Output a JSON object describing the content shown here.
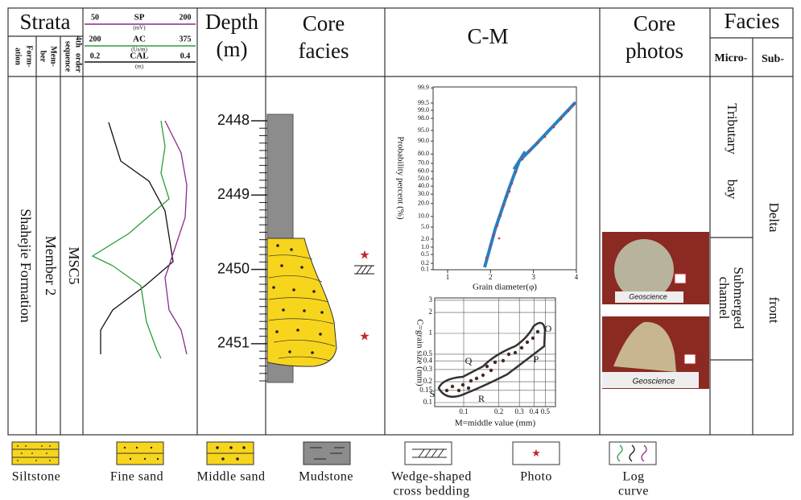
{
  "columns": {
    "strata": "Strata",
    "formation_lines": [
      "Form-",
      "ation"
    ],
    "member_lines": [
      "Mem-",
      "ber"
    ],
    "sequence_lines": [
      "4th",
      "order",
      "sequence"
    ],
    "depth_lines": [
      "Depth",
      "(m)"
    ],
    "core_facies_lines": [
      "Core",
      "facies"
    ],
    "cm": "C-M",
    "core_photos_lines": [
      "Core",
      "photos"
    ],
    "facies": "Facies",
    "micro": "Micro-",
    "sub": "Sub-"
  },
  "logs": [
    {
      "name": "SP",
      "unit": "(mV)",
      "min": "50",
      "max": "200"
    },
    {
      "name": "AC",
      "unit": "(Us/m)",
      "min": "200",
      "max": "375"
    },
    {
      "name": "CAL",
      "unit": "(m)",
      "min": "0.2",
      "max": "0.4"
    }
  ],
  "strata": {
    "formation": "Shahejie  Formation",
    "member": "Member  2",
    "sequence": "MSC5"
  },
  "depths": [
    "2448",
    "2449",
    "2450",
    "2451"
  ],
  "cm_probability": {
    "y_label": "Probability percent (%)",
    "x_label": "Grain diameter(φ)",
    "yticks": [
      "99.9",
      "99.5",
      "99.0",
      "98.0",
      "95.0",
      "90.0",
      "80.0",
      "70.0",
      "60.0",
      "50.0",
      "40.0",
      "30.0",
      "20.0",
      "10.0",
      "5.0",
      "2.0",
      "1.0",
      "0.5",
      "0.2",
      "0.1"
    ],
    "xticks": [
      "1",
      "2",
      "3",
      "4"
    ]
  },
  "cm_pattern": {
    "y_label": "C=grain size (mm)",
    "x_label": "M=middle value (mm)",
    "yticks": [
      "3",
      "2",
      "1",
      "0.5",
      "0.4",
      "0.3",
      "0.2",
      "0.15",
      "0.1"
    ],
    "xticks": [
      "0.1",
      "0.2",
      "0.3",
      "0.4",
      "0.5"
    ],
    "segments": [
      "S",
      "R",
      "Q",
      "P",
      "O"
    ]
  },
  "photos": [
    "Geoscience",
    "Geoscience"
  ],
  "facies": {
    "micro": [
      [
        "Tributary",
        "bay"
      ],
      [
        "Submerged",
        "channel"
      ]
    ],
    "sub": [
      "Delta",
      "front"
    ]
  },
  "legend": [
    [
      "Siltstone"
    ],
    [
      "Fine sand"
    ],
    [
      "Middle sand"
    ],
    [
      "Mudstone"
    ],
    [
      "Wedge-shaped",
      "cross bedding"
    ],
    [
      "Photo"
    ],
    [
      "Log",
      "curve"
    ]
  ]
}
